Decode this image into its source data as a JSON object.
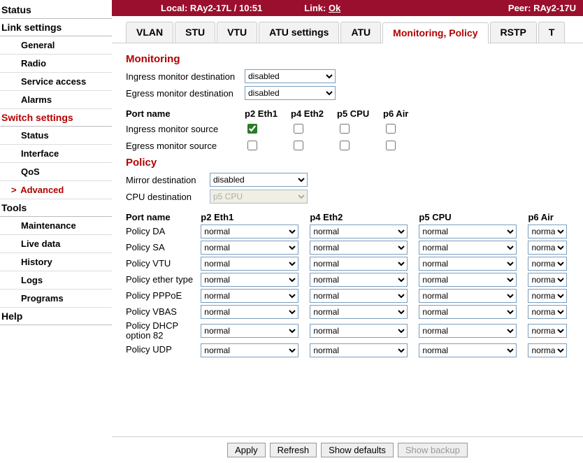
{
  "colors": {
    "brand_red": "#b30000",
    "topbar_bg": "#9a0f2d",
    "border": "#cccccc"
  },
  "sidebar": {
    "sections": [
      {
        "title": "Status",
        "red": false,
        "items": []
      },
      {
        "title": "Link settings",
        "red": false,
        "items": [
          {
            "label": "General"
          },
          {
            "label": "Radio"
          },
          {
            "label": "Service access"
          },
          {
            "label": "Alarms"
          }
        ]
      },
      {
        "title": "Switch settings",
        "red": true,
        "items": [
          {
            "label": "Status"
          },
          {
            "label": "Interface"
          },
          {
            "label": "QoS"
          },
          {
            "label": "Advanced",
            "active": true
          }
        ]
      },
      {
        "title": "Tools",
        "red": false,
        "items": [
          {
            "label": "Maintenance"
          },
          {
            "label": "Live data"
          },
          {
            "label": "History"
          },
          {
            "label": "Logs"
          },
          {
            "label": "Programs"
          }
        ]
      },
      {
        "title": "Help",
        "red": false,
        "items": []
      }
    ]
  },
  "topbar": {
    "local_label": "Local:",
    "local_value": "RAy2-17L / 10:51",
    "link_label": "Link:",
    "link_value": "Ok",
    "peer_label": "Peer:",
    "peer_value": "RAy2-17U"
  },
  "tabs": [
    "VLAN",
    "STU",
    "VTU",
    "ATU settings",
    "ATU",
    "Monitoring, Policy",
    "RSTP",
    "T"
  ],
  "active_tab": "Monitoring, Policy",
  "monitoring": {
    "heading": "Monitoring",
    "ingress_dest_label": "Ingress monitor destination",
    "ingress_dest_value": "disabled",
    "egress_dest_label": "Egress monitor destination",
    "egress_dest_value": "disabled",
    "port_name_label": "Port name",
    "ports": [
      "p2 Eth1",
      "p4 Eth2",
      "p5 CPU",
      "p6 Air"
    ],
    "ingress_src_label": "Ingress monitor source",
    "ingress_src": [
      true,
      false,
      false,
      false
    ],
    "egress_src_label": "Egress monitor source",
    "egress_src": [
      false,
      false,
      false,
      false
    ]
  },
  "policy": {
    "heading": "Policy",
    "mirror_dest_label": "Mirror destination",
    "mirror_dest_value": "disabled",
    "cpu_dest_label": "CPU destination",
    "cpu_dest_value": "p5 CPU",
    "port_name_label": "Port name",
    "ports": [
      "p2 Eth1",
      "p4 Eth2",
      "p5 CPU",
      "p6 Air"
    ],
    "rows": [
      {
        "label": "Policy DA",
        "values": [
          "normal",
          "normal",
          "normal",
          "norma"
        ]
      },
      {
        "label": "Policy SA",
        "values": [
          "normal",
          "normal",
          "normal",
          "norma"
        ]
      },
      {
        "label": "Policy VTU",
        "values": [
          "normal",
          "normal",
          "normal",
          "norma"
        ]
      },
      {
        "label": "Policy ether type",
        "values": [
          "normal",
          "normal",
          "normal",
          "norma"
        ]
      },
      {
        "label": "Policy PPPoE",
        "values": [
          "normal",
          "normal",
          "normal",
          "norma"
        ]
      },
      {
        "label": "Policy VBAS",
        "values": [
          "normal",
          "normal",
          "normal",
          "norma"
        ]
      },
      {
        "label": "Policy DHCP option 82",
        "values": [
          "normal",
          "normal",
          "normal",
          "norma"
        ]
      },
      {
        "label": "Policy UDP",
        "values": [
          "normal",
          "normal",
          "normal",
          "norma"
        ]
      }
    ]
  },
  "footer": {
    "apply": "Apply",
    "refresh": "Refresh",
    "show_defaults": "Show defaults",
    "show_backup": "Show backup"
  }
}
